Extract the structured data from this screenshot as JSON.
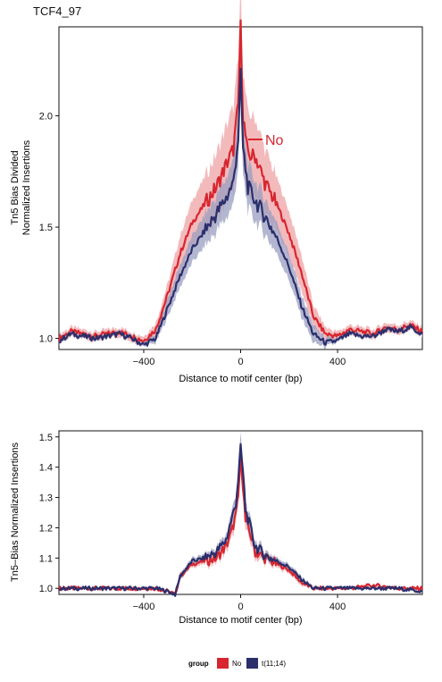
{
  "figure": {
    "title": "TCF4_97"
  },
  "colors": {
    "No": "#D7262F",
    "No_band": "#EFA3A6",
    "t(11;14)": "#2B2F6B",
    "t(11;14)_band": "#9A9DC0"
  },
  "legend": {
    "title": "group",
    "entries": [
      {
        "label": "No",
        "color": "#D7262F"
      },
      {
        "label": "t(11;14)",
        "color": "#2B2F6B"
      }
    ]
  },
  "chart_data": [
    {
      "type": "line",
      "title": "TCF4_97",
      "xlabel": "Distance to motif center (bp)",
      "ylabel_lines": [
        "Tn5 Bias Divided",
        "Normalized Insertions"
      ],
      "xlim": [
        -750,
        750
      ],
      "ylim": [
        0.95,
        2.4
      ],
      "xticks": [
        -400,
        0,
        400
      ],
      "yticks": [
        1.0,
        1.5,
        2.0
      ],
      "grid": false,
      "annotation": "No",
      "series": [
        {
          "name": "No",
          "x": [
            -750,
            -700,
            -650,
            -600,
            -550,
            -500,
            -450,
            -400,
            -350,
            -300,
            -250,
            -200,
            -150,
            -100,
            -60,
            -30,
            -10,
            0,
            10,
            30,
            60,
            100,
            150,
            200,
            250,
            300,
            350,
            400,
            450,
            500,
            550,
            600,
            650,
            700,
            750
          ],
          "y": [
            1.0,
            1.03,
            1.02,
            1.01,
            1.02,
            1.03,
            1.01,
            0.99,
            1.04,
            1.2,
            1.38,
            1.52,
            1.6,
            1.68,
            1.78,
            1.85,
            2.05,
            2.4,
            2.0,
            1.82,
            1.82,
            1.7,
            1.6,
            1.47,
            1.3,
            1.1,
            1.02,
            1.01,
            1.04,
            1.03,
            1.02,
            1.05,
            1.04,
            1.06,
            1.03
          ],
          "band_width": [
            0.02,
            0.02,
            0.02,
            0.02,
            0.02,
            0.02,
            0.02,
            0.02,
            0.03,
            0.05,
            0.08,
            0.1,
            0.12,
            0.15,
            0.17,
            0.19,
            0.2,
            0.2,
            0.2,
            0.19,
            0.17,
            0.15,
            0.12,
            0.1,
            0.08,
            0.05,
            0.03,
            0.02,
            0.02,
            0.02,
            0.02,
            0.02,
            0.02,
            0.02,
            0.02
          ]
        },
        {
          "name": "t(11;14)",
          "x": [
            -750,
            -700,
            -650,
            -600,
            -550,
            -500,
            -450,
            -400,
            -350,
            -300,
            -250,
            -200,
            -150,
            -100,
            -60,
            -30,
            -10,
            0,
            10,
            30,
            60,
            100,
            150,
            200,
            250,
            300,
            350,
            400,
            450,
            500,
            550,
            600,
            650,
            700,
            750
          ],
          "y": [
            0.99,
            1.02,
            1.01,
            1.0,
            1.01,
            1.02,
            1.0,
            0.97,
            1.0,
            1.14,
            1.28,
            1.4,
            1.48,
            1.56,
            1.63,
            1.7,
            1.9,
            2.18,
            1.85,
            1.68,
            1.62,
            1.55,
            1.45,
            1.32,
            1.15,
            1.02,
            0.98,
            0.99,
            1.02,
            1.01,
            1.01,
            1.04,
            1.03,
            1.05,
            1.02
          ],
          "band_width": [
            0.01,
            0.01,
            0.01,
            0.01,
            0.01,
            0.01,
            0.01,
            0.01,
            0.02,
            0.04,
            0.05,
            0.06,
            0.07,
            0.08,
            0.09,
            0.1,
            0.12,
            0.12,
            0.12,
            0.1,
            0.09,
            0.08,
            0.07,
            0.06,
            0.05,
            0.04,
            0.02,
            0.01,
            0.01,
            0.01,
            0.01,
            0.01,
            0.01,
            0.01,
            0.01
          ]
        }
      ]
    },
    {
      "type": "line",
      "title": "",
      "xlabel": "Distance to motif center (bp)",
      "ylabel_lines": [
        "Tn5–Bias Normalized Insertions"
      ],
      "xlim": [
        -750,
        750
      ],
      "ylim": [
        0.98,
        1.52
      ],
      "xticks": [
        -400,
        0,
        400
      ],
      "yticks": [
        1.0,
        1.1,
        1.2,
        1.3,
        1.4,
        1.5
      ],
      "grid": false,
      "series": [
        {
          "name": "No",
          "x": [
            -750,
            -650,
            -550,
            -450,
            -350,
            -300,
            -270,
            -250,
            -200,
            -150,
            -100,
            -60,
            -40,
            -20,
            -10,
            0,
            10,
            20,
            40,
            60,
            100,
            150,
            200,
            250,
            300,
            350,
            450,
            550,
            650,
            750
          ],
          "y": [
            1.0,
            1.0,
            1.0,
            1.0,
            1.0,
            0.99,
            0.98,
            1.04,
            1.08,
            1.09,
            1.1,
            1.14,
            1.18,
            1.24,
            1.3,
            1.44,
            1.34,
            1.22,
            1.18,
            1.12,
            1.1,
            1.08,
            1.06,
            1.02,
            1.0,
            1.0,
            1.0,
            1.01,
            1.0,
            1.0
          ],
          "band_width": [
            0.005,
            0.005,
            0.005,
            0.005,
            0.005,
            0.005,
            0.005,
            0.01,
            0.01,
            0.012,
            0.015,
            0.02,
            0.025,
            0.03,
            0.035,
            0.04,
            0.035,
            0.03,
            0.025,
            0.02,
            0.015,
            0.012,
            0.01,
            0.01,
            0.005,
            0.005,
            0.005,
            0.005,
            0.005,
            0.005
          ]
        },
        {
          "name": "t(11;14)",
          "x": [
            -750,
            -650,
            -550,
            -450,
            -350,
            -300,
            -270,
            -250,
            -200,
            -150,
            -100,
            -60,
            -40,
            -20,
            -10,
            0,
            10,
            20,
            40,
            60,
            100,
            150,
            200,
            250,
            300,
            350,
            450,
            550,
            650,
            750
          ],
          "y": [
            1.0,
            1.0,
            1.0,
            1.0,
            1.0,
            0.99,
            0.98,
            1.04,
            1.09,
            1.1,
            1.12,
            1.16,
            1.22,
            1.28,
            1.36,
            1.46,
            1.38,
            1.26,
            1.2,
            1.14,
            1.11,
            1.09,
            1.07,
            1.03,
            1.0,
            1.0,
            1.0,
            1.0,
            1.0,
            0.99
          ],
          "band_width": [
            0.005,
            0.005,
            0.005,
            0.005,
            0.005,
            0.005,
            0.005,
            0.01,
            0.01,
            0.012,
            0.015,
            0.02,
            0.025,
            0.03,
            0.035,
            0.04,
            0.035,
            0.03,
            0.025,
            0.02,
            0.015,
            0.012,
            0.01,
            0.01,
            0.005,
            0.005,
            0.005,
            0.005,
            0.005,
            0.005
          ]
        }
      ]
    }
  ]
}
